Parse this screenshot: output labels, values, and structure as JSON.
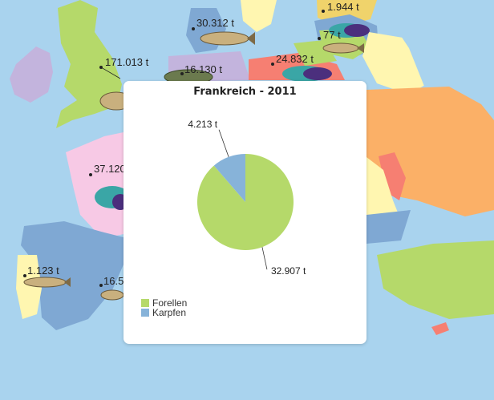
{
  "map_markers": [
    {
      "label": "171.013 t"
    },
    {
      "label": "30.312 t"
    },
    {
      "label": "1.944 t"
    },
    {
      "label": "77 t"
    },
    {
      "label": "16.130 t"
    },
    {
      "label": "24.832 t"
    },
    {
      "label": "37.120 t"
    },
    {
      "label": "1.123 t"
    },
    {
      "label": "16.5"
    }
  ],
  "popup": {
    "title": "Frankreich - 2011"
  },
  "colors": {
    "sea": "#a9d3ee",
    "forellen": "#b5d96a",
    "karpfen": "#87b3d9"
  },
  "chart_data": {
    "type": "pie",
    "title": "Frankreich - 2011",
    "series": [
      {
        "name": "Forellen",
        "value": 32907,
        "label": "32.907 t",
        "color": "#b5d96a"
      },
      {
        "name": "Karpfen",
        "value": 4213,
        "label": "4.213 t",
        "color": "#87b3d9"
      }
    ],
    "legend_position": "bottom-left"
  }
}
